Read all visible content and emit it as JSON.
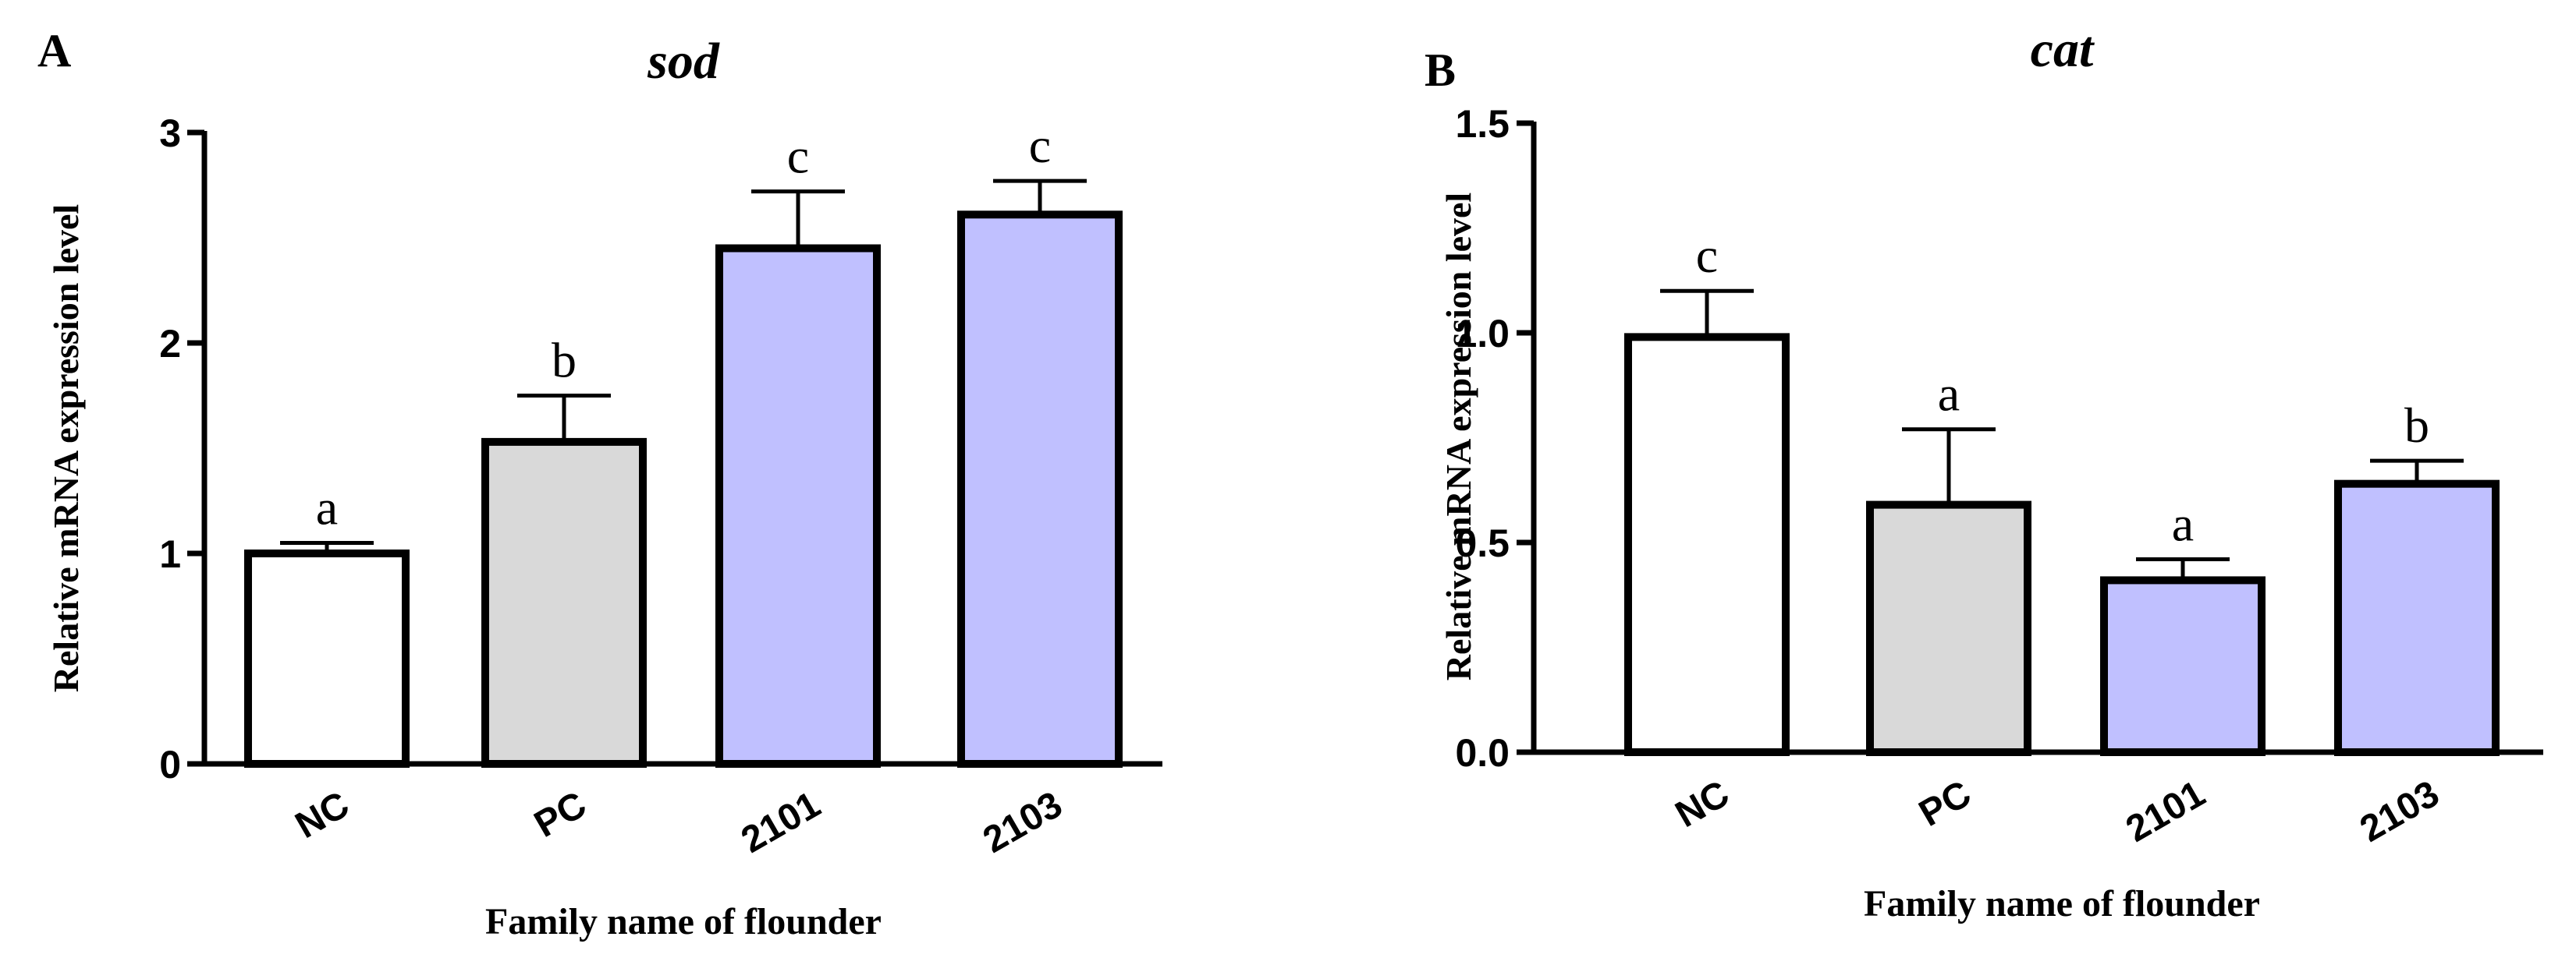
{
  "chart_data": [
    {
      "panel_label": "A",
      "type": "bar",
      "title": "sod",
      "xlabel": "Family name of flounder",
      "ylabel": "Relative mRNA expression level",
      "categories": [
        "NC",
        "PC",
        "2101",
        "2103"
      ],
      "values": [
        1.0,
        1.53,
        2.45,
        2.61
      ],
      "errors": [
        0.05,
        0.22,
        0.27,
        0.16
      ],
      "significance": [
        "a",
        "b",
        "c",
        "c"
      ],
      "bar_colors": [
        "#ffffff",
        "#d9d9d9",
        "#c0c0ff",
        "#c0c0ff"
      ],
      "ylim": [
        0,
        3
      ],
      "yticks": [
        0,
        1,
        2,
        3
      ],
      "ytick_labels": [
        "0",
        "1",
        "2",
        "3"
      ],
      "grid": false
    },
    {
      "panel_label": "B",
      "type": "bar",
      "title": "cat",
      "xlabel": "Family name of flounder",
      "ylabel": "Relative mRNA expression level",
      "categories": [
        "NC",
        "PC",
        "2101",
        "2103"
      ],
      "values": [
        0.99,
        0.59,
        0.41,
        0.64
      ],
      "errors": [
        0.11,
        0.18,
        0.05,
        0.055
      ],
      "significance": [
        "c",
        "a",
        "a",
        "b"
      ],
      "bar_colors": [
        "#ffffff",
        "#d9d9d9",
        "#c0c0ff",
        "#c0c0ff"
      ],
      "ylim": [
        0,
        1.5
      ],
      "yticks": [
        0,
        0.5,
        1.0,
        1.5
      ],
      "ytick_labels": [
        "0.0",
        "0.5",
        "1.0",
        "1.5"
      ],
      "grid": false
    }
  ]
}
